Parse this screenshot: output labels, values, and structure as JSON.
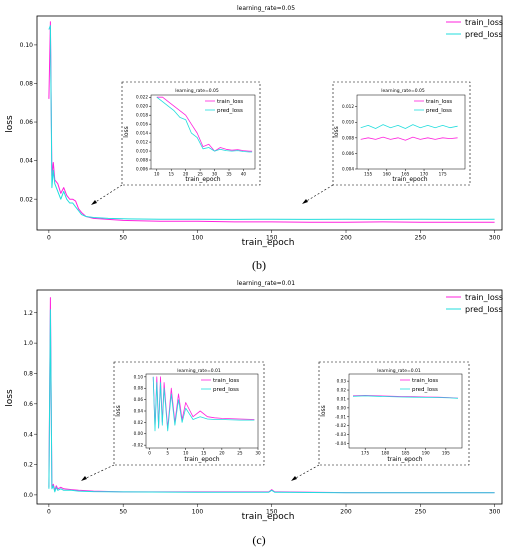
{
  "captions": {
    "b": "(b)",
    "c": "(c)"
  },
  "charts": {
    "b_main": {
      "type": "line",
      "title": "learning_rate=0.05",
      "xlabel": "train_epoch",
      "ylabel": "loss",
      "xlim": [
        -8,
        305
      ],
      "ylim": [
        0.004,
        0.115
      ],
      "xticks": [
        0,
        50,
        100,
        150,
        200,
        250,
        300
      ],
      "xtick_labels": [
        "0",
        "50",
        "100",
        "150",
        "200",
        "250",
        "300"
      ],
      "yticks": [
        0.02,
        0.04,
        0.06,
        0.08,
        0.1
      ],
      "ytick_labels": [
        "0.02",
        "0.04",
        "0.06",
        "0.08",
        "0.10"
      ],
      "legend": [
        "train_loss",
        "pred_loss"
      ],
      "legend_position": "top-right",
      "series": [
        {
          "name": "train_loss",
          "color": "#ff22dd",
          "x": [
            0,
            1,
            2,
            3,
            4,
            6,
            8,
            10,
            12,
            14,
            16,
            18,
            20,
            22,
            25,
            30,
            40,
            50,
            75,
            100,
            125,
            150,
            175,
            200,
            225,
            250,
            275,
            300
          ],
          "y": [
            0.072,
            0.112,
            0.032,
            0.039,
            0.03,
            0.028,
            0.023,
            0.026,
            0.022,
            0.02,
            0.02,
            0.019,
            0.015,
            0.013,
            0.011,
            0.01,
            0.0095,
            0.009,
            0.0085,
            0.0085,
            0.0082,
            0.0082,
            0.008,
            0.008,
            0.0082,
            0.008,
            0.008,
            0.008
          ]
        },
        {
          "name": "pred_loss",
          "color": "#22dddd",
          "x": [
            0,
            1,
            2,
            3,
            4,
            6,
            8,
            10,
            12,
            14,
            16,
            18,
            20,
            22,
            25,
            30,
            40,
            50,
            75,
            100,
            125,
            150,
            175,
            200,
            225,
            250,
            275,
            300
          ],
          "y": [
            0.108,
            0.11,
            0.026,
            0.035,
            0.028,
            0.024,
            0.02,
            0.024,
            0.02,
            0.018,
            0.018,
            0.016,
            0.014,
            0.012,
            0.011,
            0.0105,
            0.01,
            0.0098,
            0.0096,
            0.0096,
            0.0095,
            0.0096,
            0.0095,
            0.0096,
            0.0095,
            0.0096,
            0.0095,
            0.0096
          ]
        }
      ]
    },
    "b_inset1": {
      "type": "line",
      "title": "learning_rate=0.05",
      "xlabel": "train_epoch",
      "ylabel": "loss",
      "xlim": [
        8,
        44
      ],
      "ylim": [
        0.006,
        0.0225
      ],
      "xticks": [
        10,
        15,
        20,
        25,
        30,
        35,
        40
      ],
      "xtick_labels": [
        "10",
        "15",
        "20",
        "25",
        "30",
        "35",
        "40"
      ],
      "yticks": [
        0.006,
        0.008,
        0.01,
        0.012,
        0.014,
        0.016,
        0.018,
        0.02,
        0.022
      ],
      "ytick_labels": [
        "0.006",
        "0.008",
        "0.010",
        "0.012",
        "0.014",
        "0.016",
        "0.018",
        "0.020",
        "0.022"
      ],
      "legend": [
        "train_loss",
        "pred_loss"
      ],
      "series": [
        {
          "name": "train_loss",
          "color": "#ff22dd",
          "x": [
            10,
            12,
            14,
            16,
            18,
            20,
            22,
            24,
            26,
            28,
            30,
            32,
            34,
            36,
            38,
            40,
            42,
            43
          ],
          "y": [
            0.022,
            0.022,
            0.021,
            0.02,
            0.019,
            0.018,
            0.016,
            0.014,
            0.011,
            0.0115,
            0.01,
            0.0108,
            0.0104,
            0.0102,
            0.0103,
            0.0101,
            0.01,
            0.01
          ]
        },
        {
          "name": "pred_loss",
          "color": "#22dddd",
          "x": [
            10,
            12,
            14,
            16,
            18,
            20,
            22,
            24,
            26,
            28,
            30,
            32,
            34,
            36,
            38,
            40,
            42,
            43
          ],
          "y": [
            0.022,
            0.021,
            0.02,
            0.019,
            0.0175,
            0.017,
            0.014,
            0.013,
            0.0105,
            0.0108,
            0.01,
            0.0104,
            0.0101,
            0.01,
            0.0101,
            0.0099,
            0.0098,
            0.0098
          ]
        }
      ]
    },
    "b_inset2": {
      "type": "line",
      "title": "learning_rate=0.05",
      "xlabel": "train_epoch",
      "ylabel": "loss",
      "xlim": [
        152,
        181
      ],
      "ylim": [
        0.004,
        0.0135
      ],
      "xticks": [
        155,
        160,
        165,
        170,
        175
      ],
      "xtick_labels": [
        "155",
        "160",
        "165",
        "170",
        "175"
      ],
      "yticks": [
        0.004,
        0.006,
        0.008,
        0.01,
        0.012
      ],
      "ytick_labels": [
        "0.004",
        "0.006",
        "0.008",
        "0.010",
        "0.012"
      ],
      "legend": [
        "train_loss",
        "pred_loss"
      ],
      "series": [
        {
          "name": "train_loss",
          "color": "#ff22dd",
          "x": [
            153,
            155,
            157,
            159,
            161,
            163,
            165,
            167,
            169,
            171,
            173,
            175,
            177,
            179
          ],
          "y": [
            0.0078,
            0.008,
            0.0078,
            0.0081,
            0.0078,
            0.008,
            0.0077,
            0.0081,
            0.0078,
            0.008,
            0.0078,
            0.008,
            0.0079,
            0.008
          ]
        },
        {
          "name": "pred_loss",
          "color": "#22dddd",
          "x": [
            153,
            155,
            157,
            159,
            161,
            163,
            165,
            167,
            169,
            171,
            173,
            175,
            177,
            179
          ],
          "y": [
            0.0093,
            0.0096,
            0.0092,
            0.0097,
            0.0093,
            0.0096,
            0.0092,
            0.0097,
            0.0093,
            0.0096,
            0.0093,
            0.0096,
            0.0093,
            0.0095
          ]
        }
      ]
    },
    "c_main": {
      "type": "line",
      "title": "learning_rate=0.01",
      "xlabel": "train_epoch",
      "ylabel": "loss",
      "xlim": [
        -8,
        305
      ],
      "ylim": [
        -0.06,
        1.35
      ],
      "xticks": [
        0,
        50,
        100,
        150,
        200,
        250,
        300
      ],
      "xtick_labels": [
        "0",
        "50",
        "100",
        "150",
        "200",
        "250",
        "300"
      ],
      "yticks": [
        0.0,
        0.2,
        0.4,
        0.6,
        0.8,
        1.0,
        1.2
      ],
      "ytick_labels": [
        "0.0",
        "0.2",
        "0.4",
        "0.6",
        "0.8",
        "1.0",
        "1.2"
      ],
      "legend": [
        "train_loss",
        "pred_loss"
      ],
      "legend_position": "top-right",
      "series": [
        {
          "name": "train_loss",
          "color": "#ff22dd",
          "x": [
            0,
            1,
            2,
            3,
            4,
            5,
            6,
            8,
            10,
            15,
            20,
            30,
            50,
            100,
            148,
            150,
            152,
            155,
            200,
            250,
            300
          ],
          "y": [
            0.05,
            1.3,
            0.05,
            0.07,
            0.03,
            0.06,
            0.04,
            0.05,
            0.04,
            0.035,
            0.03,
            0.025,
            0.02,
            0.02,
            0.02,
            0.035,
            0.02,
            0.02,
            0.015,
            0.015,
            0.015
          ]
        },
        {
          "name": "pred_loss",
          "color": "#22dddd",
          "x": [
            0,
            1,
            2,
            3,
            4,
            5,
            6,
            8,
            10,
            15,
            20,
            30,
            50,
            100,
            148,
            150,
            152,
            155,
            200,
            250,
            300
          ],
          "y": [
            0.04,
            1.22,
            0.04,
            0.06,
            0.02,
            0.05,
            0.03,
            0.04,
            0.03,
            0.03,
            0.025,
            0.022,
            0.02,
            0.018,
            0.018,
            0.03,
            0.018,
            0.018,
            0.014,
            0.014,
            0.014
          ]
        }
      ]
    },
    "c_inset1": {
      "type": "line",
      "title": "learning_rate=0.01",
      "xlabel": "train_epoch",
      "ylabel": "loss",
      "xlim": [
        -1,
        30
      ],
      "ylim": [
        -0.025,
        0.105
      ],
      "xticks": [
        0,
        5,
        10,
        15,
        20,
        25,
        30
      ],
      "xtick_labels": [
        "0",
        "5",
        "10",
        "15",
        "20",
        "25",
        "30"
      ],
      "yticks": [
        -0.02,
        0.0,
        0.02,
        0.04,
        0.06,
        0.08,
        0.1
      ],
      "ytick_labels": [
        "-0.02",
        "0.00",
        "0.02",
        "0.04",
        "0.06",
        "0.08",
        "0.10"
      ],
      "legend": [
        "train_loss",
        "pred_loss"
      ],
      "series": [
        {
          "name": "train_loss",
          "color": "#ff22dd",
          "x": [
            1,
            1.5,
            2,
            2.5,
            3,
            3.5,
            4,
            5,
            6,
            7,
            8,
            9,
            10,
            12,
            14,
            16,
            18,
            20,
            25,
            29
          ],
          "y": [
            0.1,
            0.01,
            0.1,
            0.01,
            0.1,
            0.02,
            0.09,
            0.01,
            0.08,
            0.02,
            0.07,
            0.025,
            0.055,
            0.03,
            0.04,
            0.03,
            0.028,
            0.027,
            0.026,
            0.025
          ]
        },
        {
          "name": "pred_loss",
          "color": "#22dddd",
          "x": [
            1,
            1.5,
            2,
            2.5,
            3,
            3.5,
            4,
            5,
            6,
            7,
            8,
            9,
            10,
            12,
            14,
            16,
            18,
            20,
            25,
            29
          ],
          "y": [
            0.1,
            0.005,
            0.09,
            0.01,
            0.09,
            0.015,
            0.08,
            0.005,
            0.07,
            0.015,
            0.06,
            0.02,
            0.045,
            0.025,
            0.03,
            0.026,
            0.025,
            0.025,
            0.024,
            0.024
          ]
        }
      ]
    },
    "c_inset2": {
      "type": "line",
      "title": "learning_rate=0.01",
      "xlabel": "train_epoch",
      "ylabel": "loss",
      "xlim": [
        171,
        199
      ],
      "ylim": [
        -0.045,
        0.038
      ],
      "xticks": [
        175,
        180,
        185,
        190,
        195
      ],
      "xtick_labels": [
        "175",
        "180",
        "185",
        "190",
        "195"
      ],
      "yticks": [
        -0.04,
        -0.03,
        -0.02,
        -0.01,
        0.0,
        0.01,
        0.02,
        0.03
      ],
      "ytick_labels": [
        "-0.04",
        "-0.03",
        "-0.02",
        "-0.01",
        "0.00",
        "0.01",
        "0.02",
        "0.03"
      ],
      "legend": [
        "train_loss",
        "pred_loss"
      ],
      "series": [
        {
          "name": "train_loss",
          "color": "#ff22dd",
          "x": [
            172,
            175,
            178,
            181,
            184,
            187,
            190,
            193,
            196,
            198
          ],
          "y": [
            0.0135,
            0.014,
            0.0135,
            0.0132,
            0.0128,
            0.0125,
            0.0122,
            0.012,
            0.0115,
            0.011
          ]
        },
        {
          "name": "pred_loss",
          "color": "#22dddd",
          "x": [
            172,
            175,
            178,
            181,
            184,
            187,
            190,
            193,
            196,
            198
          ],
          "y": [
            0.013,
            0.0135,
            0.013,
            0.0126,
            0.0122,
            0.012,
            0.0118,
            0.0116,
            0.0112,
            0.0108
          ]
        }
      ]
    }
  }
}
